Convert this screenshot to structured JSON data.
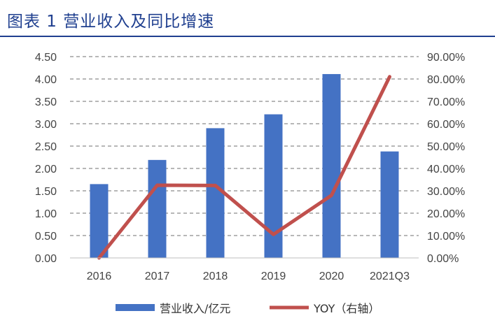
{
  "title": "图表 1  营业收入及同比增速",
  "colors": {
    "title": "#1f3f8f",
    "bar": "#4472c4",
    "line": "#c0504d",
    "grid": "#8c8c8c",
    "tick": "#444444"
  },
  "chart_data": {
    "type": "bar",
    "title": "图表 1  营业收入及同比增速",
    "categories": [
      "2016",
      "2017",
      "2018",
      "2019",
      "2020",
      "2021Q3"
    ],
    "series": [
      {
        "name": "营业收入/亿元",
        "type": "bar",
        "axis": "left",
        "values": [
          1.65,
          2.19,
          2.9,
          3.21,
          4.11,
          2.38
        ]
      },
      {
        "name": "YOY（右轴）",
        "type": "line",
        "axis": "right",
        "values": [
          0.0,
          32.5,
          32.4,
          10.5,
          28.0,
          81.0
        ]
      }
    ],
    "ylim": [
      0,
      4.5
    ],
    "yticks": [
      "0.00",
      "0.50",
      "1.00",
      "1.50",
      "2.00",
      "2.50",
      "3.00",
      "3.50",
      "4.00",
      "4.50"
    ],
    "y2lim": [
      0,
      90
    ],
    "y2ticks": [
      "0.00%",
      "10.00%",
      "20.00%",
      "30.00%",
      "40.00%",
      "50.00%",
      "60.00%",
      "70.00%",
      "80.00%",
      "90.00%"
    ],
    "grid": true,
    "legend": "bottom-center"
  }
}
